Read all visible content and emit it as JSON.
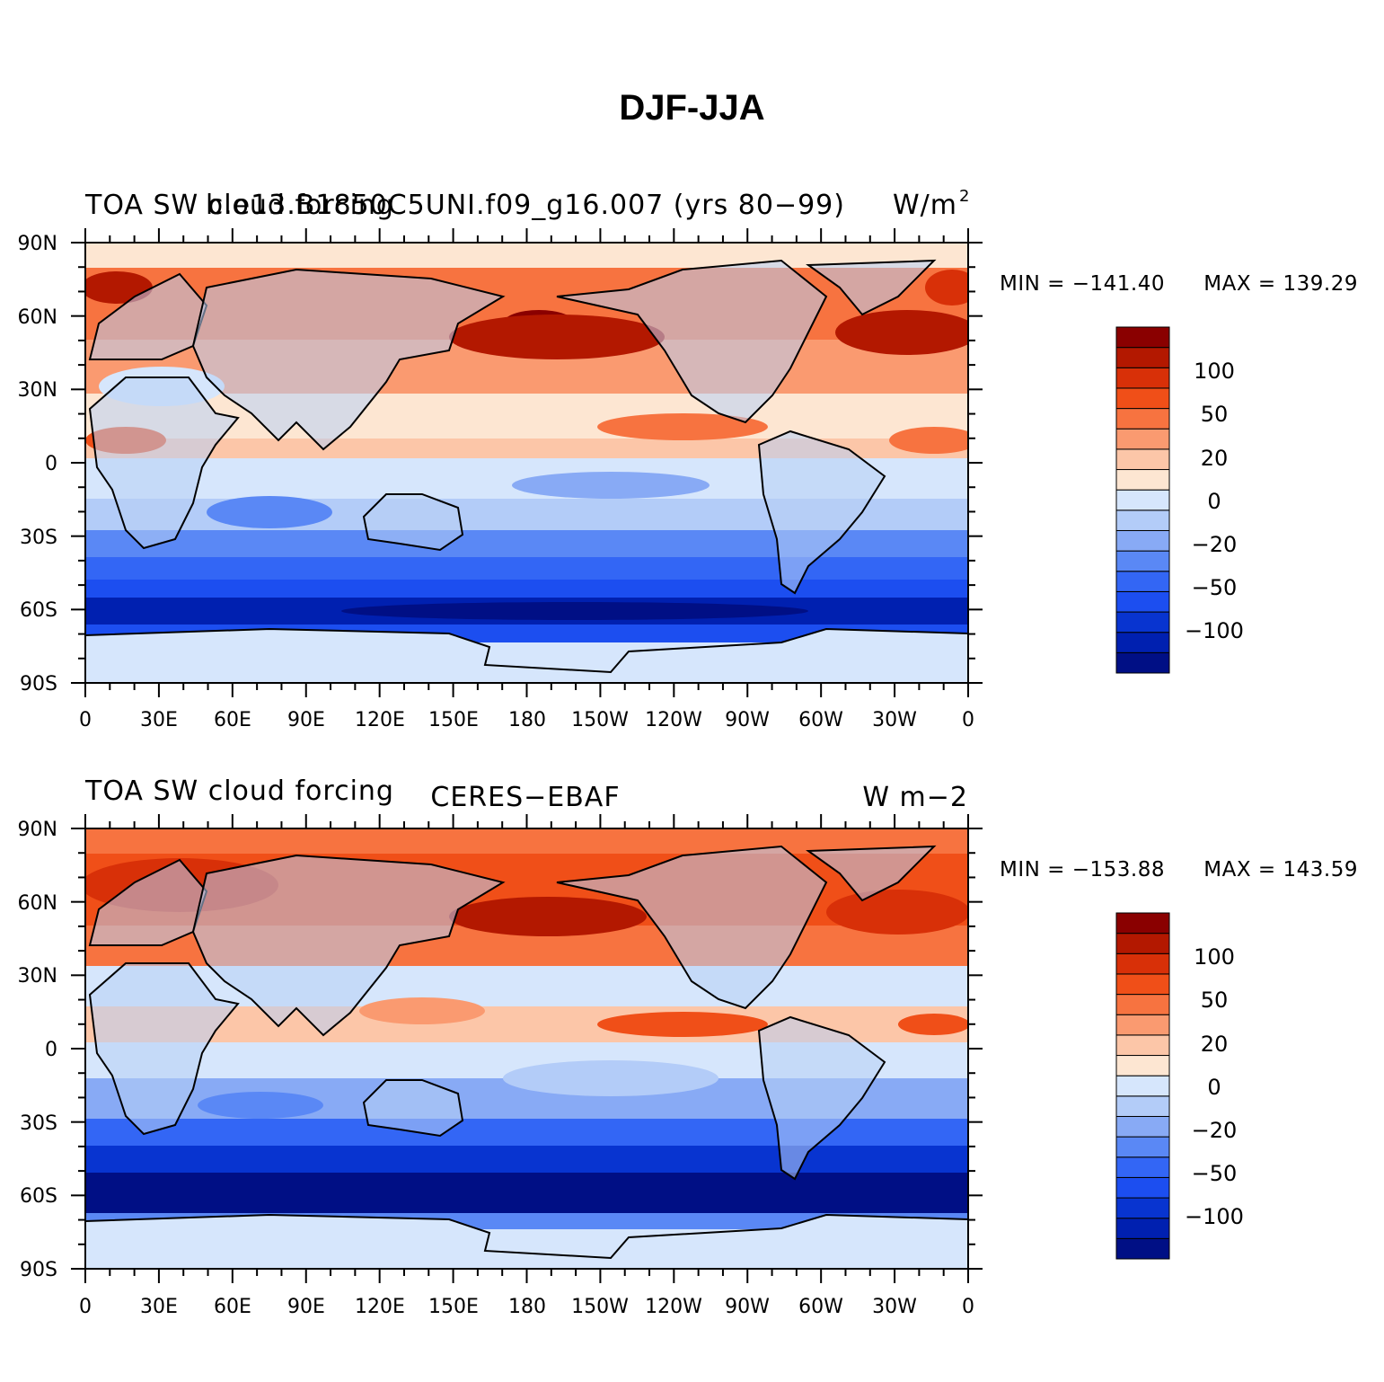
{
  "title": "DJF-JJA",
  "palette": [
    "#000f85",
    "#0020b0",
    "#0834d0",
    "#1c4ef0",
    "#3366f5",
    "#5a88f5",
    "#88aaf5",
    "#b3ccf8",
    "#d6e6fc",
    "#fde6d2",
    "#fcc6a8",
    "#fa9a70",
    "#f77340",
    "#f04f18",
    "#d83008",
    "#b31800",
    "#8a0000"
  ],
  "land_color": "#b8d0f4",
  "ice_color": "#d6e6fc",
  "coast_color": "#000000",
  "lat_ticks": [
    "90N",
    "60N",
    "30N",
    "0",
    "30S",
    "60S",
    "90S"
  ],
  "lon_ticks": [
    "0",
    "30E",
    "60E",
    "90E",
    "120E",
    "150E",
    "180",
    "150W",
    "120W",
    "90W",
    "60W",
    "30W",
    "0"
  ],
  "colorbar_labels": [
    "100",
    "50",
    "20",
    "0",
    "−20",
    "−50",
    "−100"
  ],
  "panels": [
    {
      "id": "model",
      "left_text": "TOA SW cloud forcing",
      "center_text": "b.e13.B1850C5UNI.f09_g16.007 (yrs 80−99)",
      "right_text": "W/m",
      "right_sup": "2",
      "min_text": "MIN = −141.40",
      "max_text": "MAX = 139.29"
    },
    {
      "id": "obs",
      "left_text": "TOA SW cloud forcing",
      "center_text": "CERES−EBAF",
      "right_text": "W m−2",
      "right_sup": "",
      "min_text": "MIN = −153.88",
      "max_text": "MAX = 143.59"
    }
  ]
}
